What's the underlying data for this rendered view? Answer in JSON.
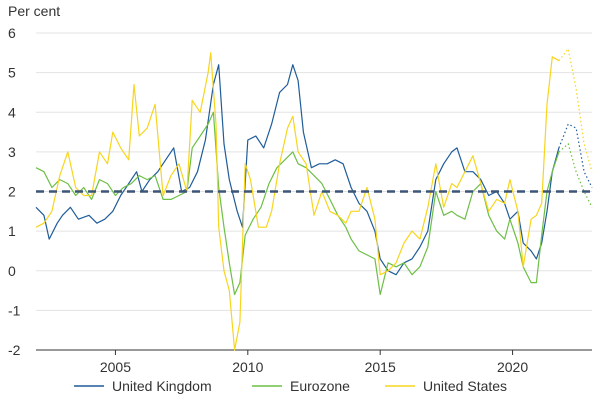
{
  "chart_data": {
    "type": "line",
    "y_unit_label": "Per cent",
    "xlim": [
      2002.0,
      2023.0
    ],
    "ylim": [
      -2,
      6
    ],
    "y_ticks": [
      -2,
      -1,
      0,
      1,
      2,
      3,
      4,
      5,
      6
    ],
    "x_ticks": [
      2005,
      2010,
      2015,
      2020
    ],
    "grid": "horizontal",
    "legend_position": "bottom",
    "reference_line": {
      "y": 2,
      "style": "dashed",
      "color": "#3d5577"
    },
    "forecast_start": 2021.75,
    "series": [
      {
        "name": "United Kingdom",
        "color": "#1f5c99",
        "points": [
          [
            2002.0,
            1.6
          ],
          [
            2002.3,
            1.4
          ],
          [
            2002.5,
            0.8
          ],
          [
            2002.8,
            1.2
          ],
          [
            2003.0,
            1.4
          ],
          [
            2003.3,
            1.6
          ],
          [
            2003.6,
            1.3
          ],
          [
            2004.0,
            1.4
          ],
          [
            2004.3,
            1.2
          ],
          [
            2004.6,
            1.3
          ],
          [
            2004.9,
            1.5
          ],
          [
            2005.2,
            1.9
          ],
          [
            2005.5,
            2.2
          ],
          [
            2005.8,
            2.5
          ],
          [
            2006.0,
            2.0
          ],
          [
            2006.3,
            2.3
          ],
          [
            2006.6,
            2.5
          ],
          [
            2006.9,
            2.8
          ],
          [
            2007.2,
            3.1
          ],
          [
            2007.5,
            2.0
          ],
          [
            2007.8,
            2.1
          ],
          [
            2008.1,
            2.5
          ],
          [
            2008.4,
            3.3
          ],
          [
            2008.7,
            4.7
          ],
          [
            2008.9,
            5.2
          ],
          [
            2009.1,
            3.2
          ],
          [
            2009.3,
            2.3
          ],
          [
            2009.6,
            1.5
          ],
          [
            2009.8,
            1.1
          ],
          [
            2010.0,
            3.3
          ],
          [
            2010.3,
            3.4
          ],
          [
            2010.6,
            3.1
          ],
          [
            2010.9,
            3.7
          ],
          [
            2011.2,
            4.5
          ],
          [
            2011.5,
            4.7
          ],
          [
            2011.7,
            5.2
          ],
          [
            2011.9,
            4.8
          ],
          [
            2012.1,
            3.5
          ],
          [
            2012.4,
            2.6
          ],
          [
            2012.7,
            2.7
          ],
          [
            2013.0,
            2.7
          ],
          [
            2013.3,
            2.8
          ],
          [
            2013.6,
            2.7
          ],
          [
            2013.9,
            2.1
          ],
          [
            2014.2,
            1.7
          ],
          [
            2014.5,
            1.5
          ],
          [
            2014.8,
            1.0
          ],
          [
            2015.0,
            0.3
          ],
          [
            2015.3,
            0.0
          ],
          [
            2015.6,
            -0.1
          ],
          [
            2015.9,
            0.2
          ],
          [
            2016.2,
            0.3
          ],
          [
            2016.5,
            0.6
          ],
          [
            2016.8,
            1.0
          ],
          [
            2017.1,
            2.3
          ],
          [
            2017.4,
            2.7
          ],
          [
            2017.7,
            3.0
          ],
          [
            2017.9,
            3.1
          ],
          [
            2018.2,
            2.5
          ],
          [
            2018.5,
            2.5
          ],
          [
            2018.8,
            2.3
          ],
          [
            2019.1,
            1.9
          ],
          [
            2019.4,
            2.0
          ],
          [
            2019.7,
            1.7
          ],
          [
            2019.9,
            1.3
          ],
          [
            2020.2,
            1.5
          ],
          [
            2020.4,
            0.7
          ],
          [
            2020.7,
            0.5
          ],
          [
            2020.9,
            0.3
          ],
          [
            2021.1,
            0.7
          ],
          [
            2021.3,
            1.5
          ],
          [
            2021.5,
            2.5
          ],
          [
            2021.75,
            3.1
          ]
        ],
        "forecast": [
          [
            2021.75,
            3.1
          ],
          [
            2022.1,
            3.7
          ],
          [
            2022.4,
            3.6
          ],
          [
            2022.7,
            2.5
          ],
          [
            2023.0,
            2.1
          ]
        ]
      },
      {
        "name": "Eurozone",
        "color": "#6dbf45",
        "points": [
          [
            2002.0,
            2.6
          ],
          [
            2002.3,
            2.5
          ],
          [
            2002.6,
            2.1
          ],
          [
            2002.9,
            2.3
          ],
          [
            2003.2,
            2.2
          ],
          [
            2003.5,
            1.9
          ],
          [
            2003.8,
            2.1
          ],
          [
            2004.1,
            1.8
          ],
          [
            2004.4,
            2.3
          ],
          [
            2004.7,
            2.2
          ],
          [
            2005.0,
            1.9
          ],
          [
            2005.3,
            2.1
          ],
          [
            2005.6,
            2.2
          ],
          [
            2005.9,
            2.4
          ],
          [
            2006.2,
            2.3
          ],
          [
            2006.5,
            2.4
          ],
          [
            2006.8,
            1.8
          ],
          [
            2007.1,
            1.8
          ],
          [
            2007.4,
            1.9
          ],
          [
            2007.7,
            2.0
          ],
          [
            2007.9,
            3.1
          ],
          [
            2008.2,
            3.4
          ],
          [
            2008.5,
            3.7
          ],
          [
            2008.7,
            4.0
          ],
          [
            2008.9,
            2.1
          ],
          [
            2009.1,
            1.1
          ],
          [
            2009.3,
            0.2
          ],
          [
            2009.5,
            -0.6
          ],
          [
            2009.7,
            -0.3
          ],
          [
            2009.9,
            0.9
          ],
          [
            2010.2,
            1.3
          ],
          [
            2010.5,
            1.6
          ],
          [
            2010.8,
            2.2
          ],
          [
            2011.1,
            2.6
          ],
          [
            2011.4,
            2.8
          ],
          [
            2011.7,
            3.0
          ],
          [
            2011.9,
            2.7
          ],
          [
            2012.2,
            2.6
          ],
          [
            2012.5,
            2.4
          ],
          [
            2012.8,
            2.2
          ],
          [
            2013.1,
            1.8
          ],
          [
            2013.4,
            1.4
          ],
          [
            2013.7,
            1.1
          ],
          [
            2013.9,
            0.8
          ],
          [
            2014.2,
            0.5
          ],
          [
            2014.5,
            0.4
          ],
          [
            2014.8,
            0.3
          ],
          [
            2015.0,
            -0.6
          ],
          [
            2015.3,
            0.2
          ],
          [
            2015.6,
            0.1
          ],
          [
            2015.9,
            0.2
          ],
          [
            2016.2,
            -0.1
          ],
          [
            2016.5,
            0.1
          ],
          [
            2016.8,
            0.6
          ],
          [
            2017.1,
            2.0
          ],
          [
            2017.4,
            1.4
          ],
          [
            2017.7,
            1.5
          ],
          [
            2017.9,
            1.4
          ],
          [
            2018.2,
            1.3
          ],
          [
            2018.5,
            2.0
          ],
          [
            2018.8,
            2.2
          ],
          [
            2019.1,
            1.4
          ],
          [
            2019.4,
            1.0
          ],
          [
            2019.7,
            0.8
          ],
          [
            2019.9,
            1.3
          ],
          [
            2020.2,
            0.7
          ],
          [
            2020.4,
            0.1
          ],
          [
            2020.7,
            -0.3
          ],
          [
            2020.9,
            -0.3
          ],
          [
            2021.1,
            0.9
          ],
          [
            2021.3,
            2.0
          ],
          [
            2021.5,
            2.5
          ],
          [
            2021.75,
            3.0
          ]
        ],
        "forecast": [
          [
            2021.75,
            3.0
          ],
          [
            2022.1,
            3.2
          ],
          [
            2022.4,
            2.5
          ],
          [
            2022.7,
            2.0
          ],
          [
            2023.0,
            1.6
          ]
        ]
      },
      {
        "name": "United States",
        "color": "#f7d51d",
        "points": [
          [
            2002.0,
            1.1
          ],
          [
            2002.3,
            1.2
          ],
          [
            2002.6,
            1.5
          ],
          [
            2002.9,
            2.4
          ],
          [
            2003.2,
            3.0
          ],
          [
            2003.5,
            2.1
          ],
          [
            2003.8,
            1.9
          ],
          [
            2004.1,
            1.9
          ],
          [
            2004.4,
            3.0
          ],
          [
            2004.7,
            2.7
          ],
          [
            2004.9,
            3.5
          ],
          [
            2005.2,
            3.1
          ],
          [
            2005.5,
            2.8
          ],
          [
            2005.7,
            4.7
          ],
          [
            2005.9,
            3.4
          ],
          [
            2006.2,
            3.6
          ],
          [
            2006.5,
            4.2
          ],
          [
            2006.8,
            1.9
          ],
          [
            2007.1,
            2.4
          ],
          [
            2007.4,
            2.7
          ],
          [
            2007.7,
            2.0
          ],
          [
            2007.9,
            4.3
          ],
          [
            2008.2,
            4.0
          ],
          [
            2008.5,
            5.0
          ],
          [
            2008.6,
            5.5
          ],
          [
            2008.8,
            3.7
          ],
          [
            2008.9,
            1.1
          ],
          [
            2009.1,
            0.0
          ],
          [
            2009.3,
            -0.5
          ],
          [
            2009.5,
            -2.0
          ],
          [
            2009.7,
            -1.3
          ],
          [
            2009.9,
            2.7
          ],
          [
            2010.1,
            2.3
          ],
          [
            2010.4,
            1.1
          ],
          [
            2010.7,
            1.1
          ],
          [
            2010.9,
            1.5
          ],
          [
            2011.2,
            2.7
          ],
          [
            2011.5,
            3.6
          ],
          [
            2011.7,
            3.9
          ],
          [
            2011.9,
            3.0
          ],
          [
            2012.2,
            2.7
          ],
          [
            2012.5,
            1.4
          ],
          [
            2012.8,
            2.0
          ],
          [
            2013.1,
            1.5
          ],
          [
            2013.4,
            1.4
          ],
          [
            2013.7,
            1.2
          ],
          [
            2013.9,
            1.5
          ],
          [
            2014.2,
            1.5
          ],
          [
            2014.5,
            2.1
          ],
          [
            2014.8,
            1.3
          ],
          [
            2015.0,
            -0.1
          ],
          [
            2015.3,
            0.0
          ],
          [
            2015.6,
            0.2
          ],
          [
            2015.9,
            0.7
          ],
          [
            2016.2,
            1.0
          ],
          [
            2016.5,
            0.8
          ],
          [
            2016.8,
            1.6
          ],
          [
            2017.1,
            2.7
          ],
          [
            2017.4,
            1.6
          ],
          [
            2017.7,
            2.2
          ],
          [
            2017.9,
            2.1
          ],
          [
            2018.2,
            2.5
          ],
          [
            2018.5,
            2.9
          ],
          [
            2018.8,
            2.2
          ],
          [
            2019.1,
            1.5
          ],
          [
            2019.4,
            1.8
          ],
          [
            2019.7,
            1.7
          ],
          [
            2019.9,
            2.3
          ],
          [
            2020.2,
            1.5
          ],
          [
            2020.4,
            0.1
          ],
          [
            2020.7,
            1.3
          ],
          [
            2020.9,
            1.4
          ],
          [
            2021.1,
            1.7
          ],
          [
            2021.3,
            4.2
          ],
          [
            2021.5,
            5.4
          ],
          [
            2021.75,
            5.3
          ]
        ],
        "forecast": [
          [
            2021.75,
            5.3
          ],
          [
            2022.1,
            5.6
          ],
          [
            2022.4,
            4.6
          ],
          [
            2022.7,
            3.2
          ],
          [
            2023.0,
            2.5
          ]
        ]
      }
    ]
  }
}
